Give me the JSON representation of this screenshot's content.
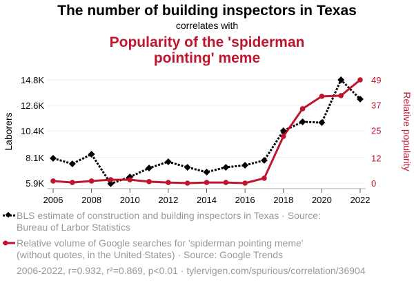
{
  "chart_data": {
    "type": "line",
    "title": "The number of building inspectors in Texas",
    "subtitle": "correlates with",
    "title2_lines": [
      "Popularity of the 'spiderman",
      "pointing' meme"
    ],
    "x": [
      2006,
      2007,
      2008,
      2009,
      2010,
      2011,
      2012,
      2013,
      2014,
      2015,
      2016,
      2017,
      2018,
      2019,
      2020,
      2021,
      2022
    ],
    "x_ticks": [
      "2006",
      "2008",
      "2010",
      "2012",
      "2014",
      "2016",
      "2018",
      "2020",
      "2022"
    ],
    "ylabel_left": "Laborers",
    "ylabel_right": "Relative popularity",
    "ylim_left": [
      5900,
      14800
    ],
    "ylim_right": [
      0,
      49
    ],
    "y_ticks_left": [
      {
        "v": 5900,
        "label": "5.9K"
      },
      {
        "v": 8100,
        "label": "8.1K"
      },
      {
        "v": 10400,
        "label": "10.4K"
      },
      {
        "v": 12600,
        "label": "12.6K"
      },
      {
        "v": 14800,
        "label": "14.8K"
      }
    ],
    "y_ticks_right": [
      {
        "v": 0,
        "label": "0"
      },
      {
        "v": 12,
        "label": "12"
      },
      {
        "v": 25,
        "label": "25"
      },
      {
        "v": 37,
        "label": "37"
      },
      {
        "v": 49,
        "label": "49"
      }
    ],
    "grid": true,
    "series": [
      {
        "name": "BLS estimate of construction and building inspectors in Texas",
        "axis": "left",
        "color": "#000000",
        "values": [
          8040,
          7560,
          8390,
          5850,
          6430,
          7200,
          7740,
          7260,
          6850,
          7260,
          7440,
          7860,
          10410,
          11180,
          11120,
          14800,
          13140
        ]
      },
      {
        "name": "Relative volume of Google searches for 'spiderman pointing meme'",
        "axis": "right",
        "color": "#c0152f",
        "values": [
          1.0,
          0.3,
          1.0,
          1.6,
          1.6,
          0.7,
          0.3,
          0,
          0.3,
          0.3,
          0,
          2.3,
          22.2,
          35.3,
          41.2,
          41.5,
          49
        ]
      }
    ]
  },
  "legend": [
    {
      "lines": [
        "BLS estimate of construction and building inspectors in Texas · Source:",
        "Bureau of Larbor Statistics"
      ]
    },
    {
      "lines": [
        "Relative volume of Google searches for 'spiderman pointing meme'",
        "(without quotes, in the United States) · Source: Google Trends"
      ]
    }
  ],
  "footer": "2006-2022, r=0.932, r²=0.869, p<0.01 · tylervigen.com/spurious/correlation/36904"
}
